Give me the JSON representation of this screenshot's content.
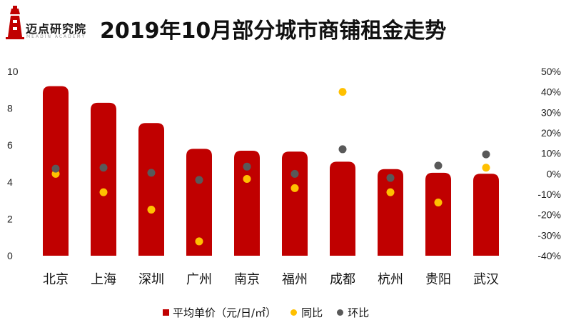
{
  "logo": {
    "text": "迈点研究院",
    "subtext": "MEADIN ACADEMY"
  },
  "title": "2019年10月部分城市商铺租金走势",
  "colors": {
    "bar": "#C00000",
    "yoy": "#FFC000",
    "mom": "#595959"
  },
  "chart_data": {
    "type": "bar",
    "title": "2019年10月部分城市商铺租金走势",
    "categories": [
      "北京",
      "上海",
      "深圳",
      "广州",
      "南京",
      "福州",
      "成都",
      "杭州",
      "贵阳",
      "武汉"
    ],
    "series": [
      {
        "name": "平均单价（元/日/㎡）",
        "kind": "bar",
        "axis": "left",
        "values": [
          9.2,
          8.3,
          7.2,
          5.8,
          5.7,
          5.65,
          5.1,
          4.7,
          4.5,
          4.45
        ]
      },
      {
        "name": "同比",
        "kind": "scatter",
        "axis": "right",
        "values": [
          0,
          -9,
          -17.5,
          -33,
          -2.5,
          -7,
          40,
          -9,
          -14,
          3
        ]
      },
      {
        "name": "环比",
        "kind": "scatter",
        "axis": "right",
        "values": [
          2.5,
          3,
          0.5,
          -3,
          3.5,
          0,
          12,
          -2,
          4,
          9.5
        ]
      }
    ],
    "y_left": {
      "range": [
        0,
        10
      ],
      "ticks": [
        "0",
        "2",
        "4",
        "6",
        "8",
        "10"
      ]
    },
    "y_right": {
      "range": [
        -40,
        50
      ],
      "ticks": [
        "-40%",
        "-30%",
        "-20%",
        "-10%",
        "0%",
        "10%",
        "20%",
        "30%",
        "40%",
        "50%"
      ]
    },
    "grid": false,
    "legend_position": "bottom"
  }
}
